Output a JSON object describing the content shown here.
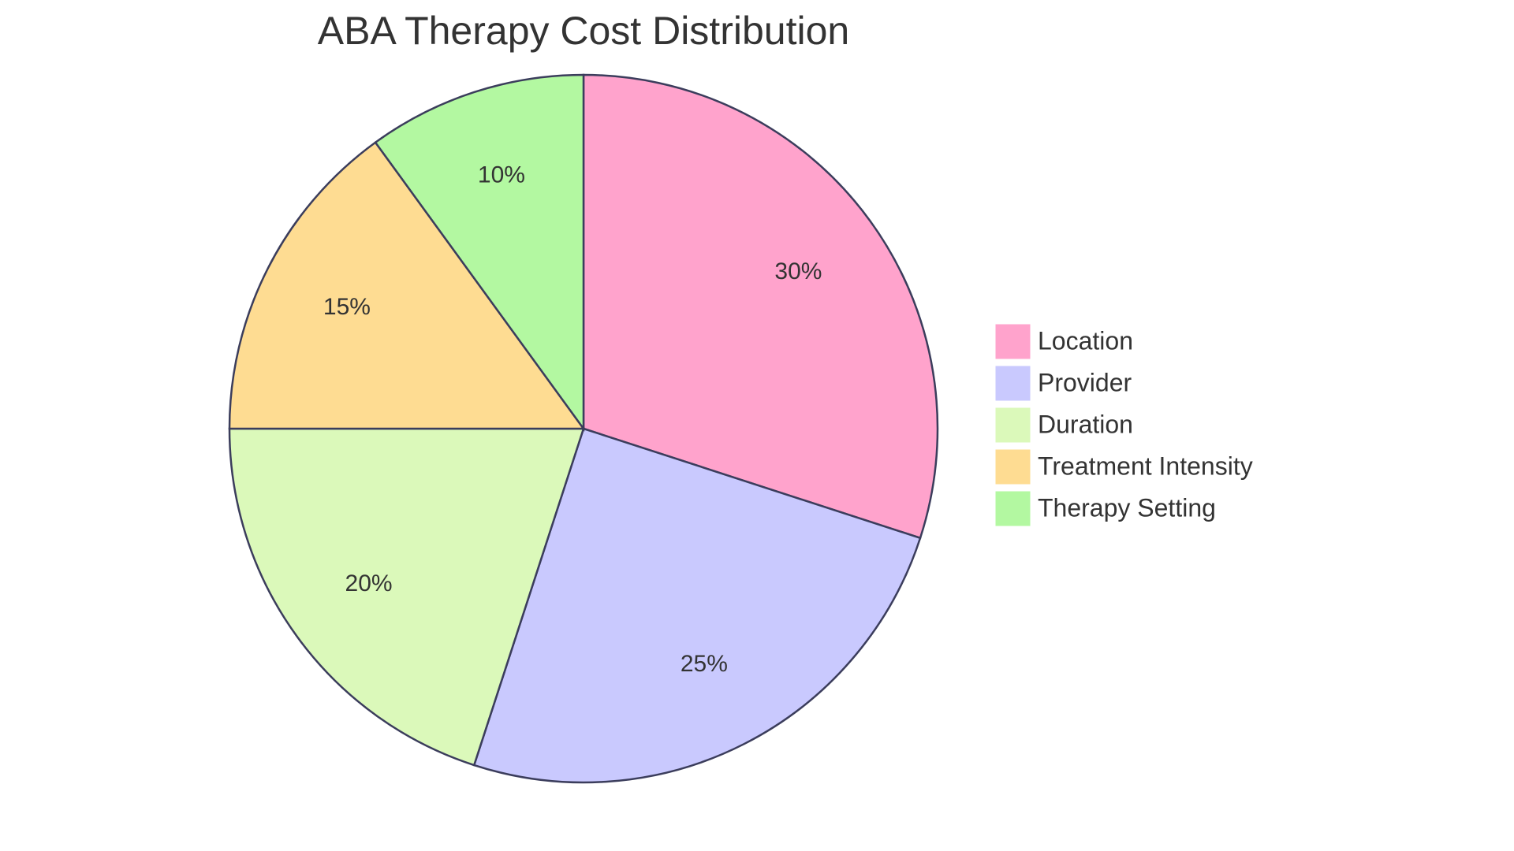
{
  "chart_data": {
    "type": "pie",
    "title": "ABA Therapy Cost Distribution",
    "categories": [
      "Location",
      "Provider",
      "Duration",
      "Treatment Intensity",
      "Therapy Setting"
    ],
    "values": [
      30,
      25,
      20,
      15,
      10
    ],
    "value_labels": [
      "30%",
      "25%",
      "20%",
      "15%",
      "10%"
    ],
    "colors": [
      "#ffa3cc",
      "#c9c9fe",
      "#dbf9ba",
      "#fedc92",
      "#b3f8a1"
    ],
    "legend": "right"
  }
}
